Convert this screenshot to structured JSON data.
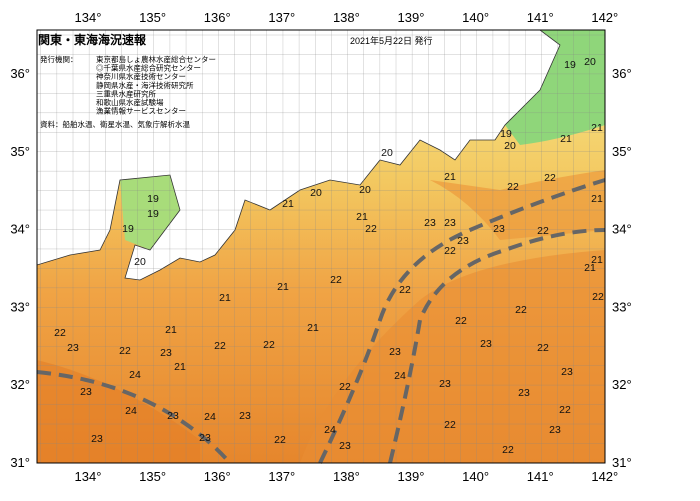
{
  "header": {
    "title": "関東・東海海況速報",
    "date": "2021年5月22日 発行"
  },
  "agencies": {
    "label": "発行機関：",
    "items": [
      "東京都島しょ農林水産総合センター",
      "◎千葉県水産総合研究センター",
      "神奈川県水産技術センター",
      "静岡県水産・海洋技術研究所",
      "三重県水産研究所",
      "和歌山県水産試験場",
      "漁業情報サービスセンター"
    ]
  },
  "source": "資料：船舶水温、衛星水温、気象庁解析水温",
  "axes": {
    "longitudes": [
      "134°",
      "135°",
      "136°",
      "137°",
      "138°",
      "139°",
      "140°",
      "141°",
      "142°"
    ],
    "latitudes": [
      "36°",
      "35°",
      "34°",
      "33°",
      "32°",
      "31°"
    ]
  },
  "temperature_labels": [
    19,
    20,
    19,
    20,
    21,
    21,
    20,
    21,
    22,
    22,
    21,
    20,
    20,
    21,
    19,
    19,
    19,
    20,
    21,
    22,
    23,
    23,
    23,
    23,
    22,
    22,
    21,
    21,
    22,
    21,
    21,
    22,
    22,
    22,
    22,
    21,
    21,
    22,
    23,
    22,
    23,
    22,
    21,
    22,
    23,
    23,
    22,
    23,
    24,
    23,
    22,
    24,
    23,
    23,
    22,
    24,
    23,
    24,
    23,
    24,
    22,
    23,
    23,
    23,
    22,
    22,
    23
  ]
}
